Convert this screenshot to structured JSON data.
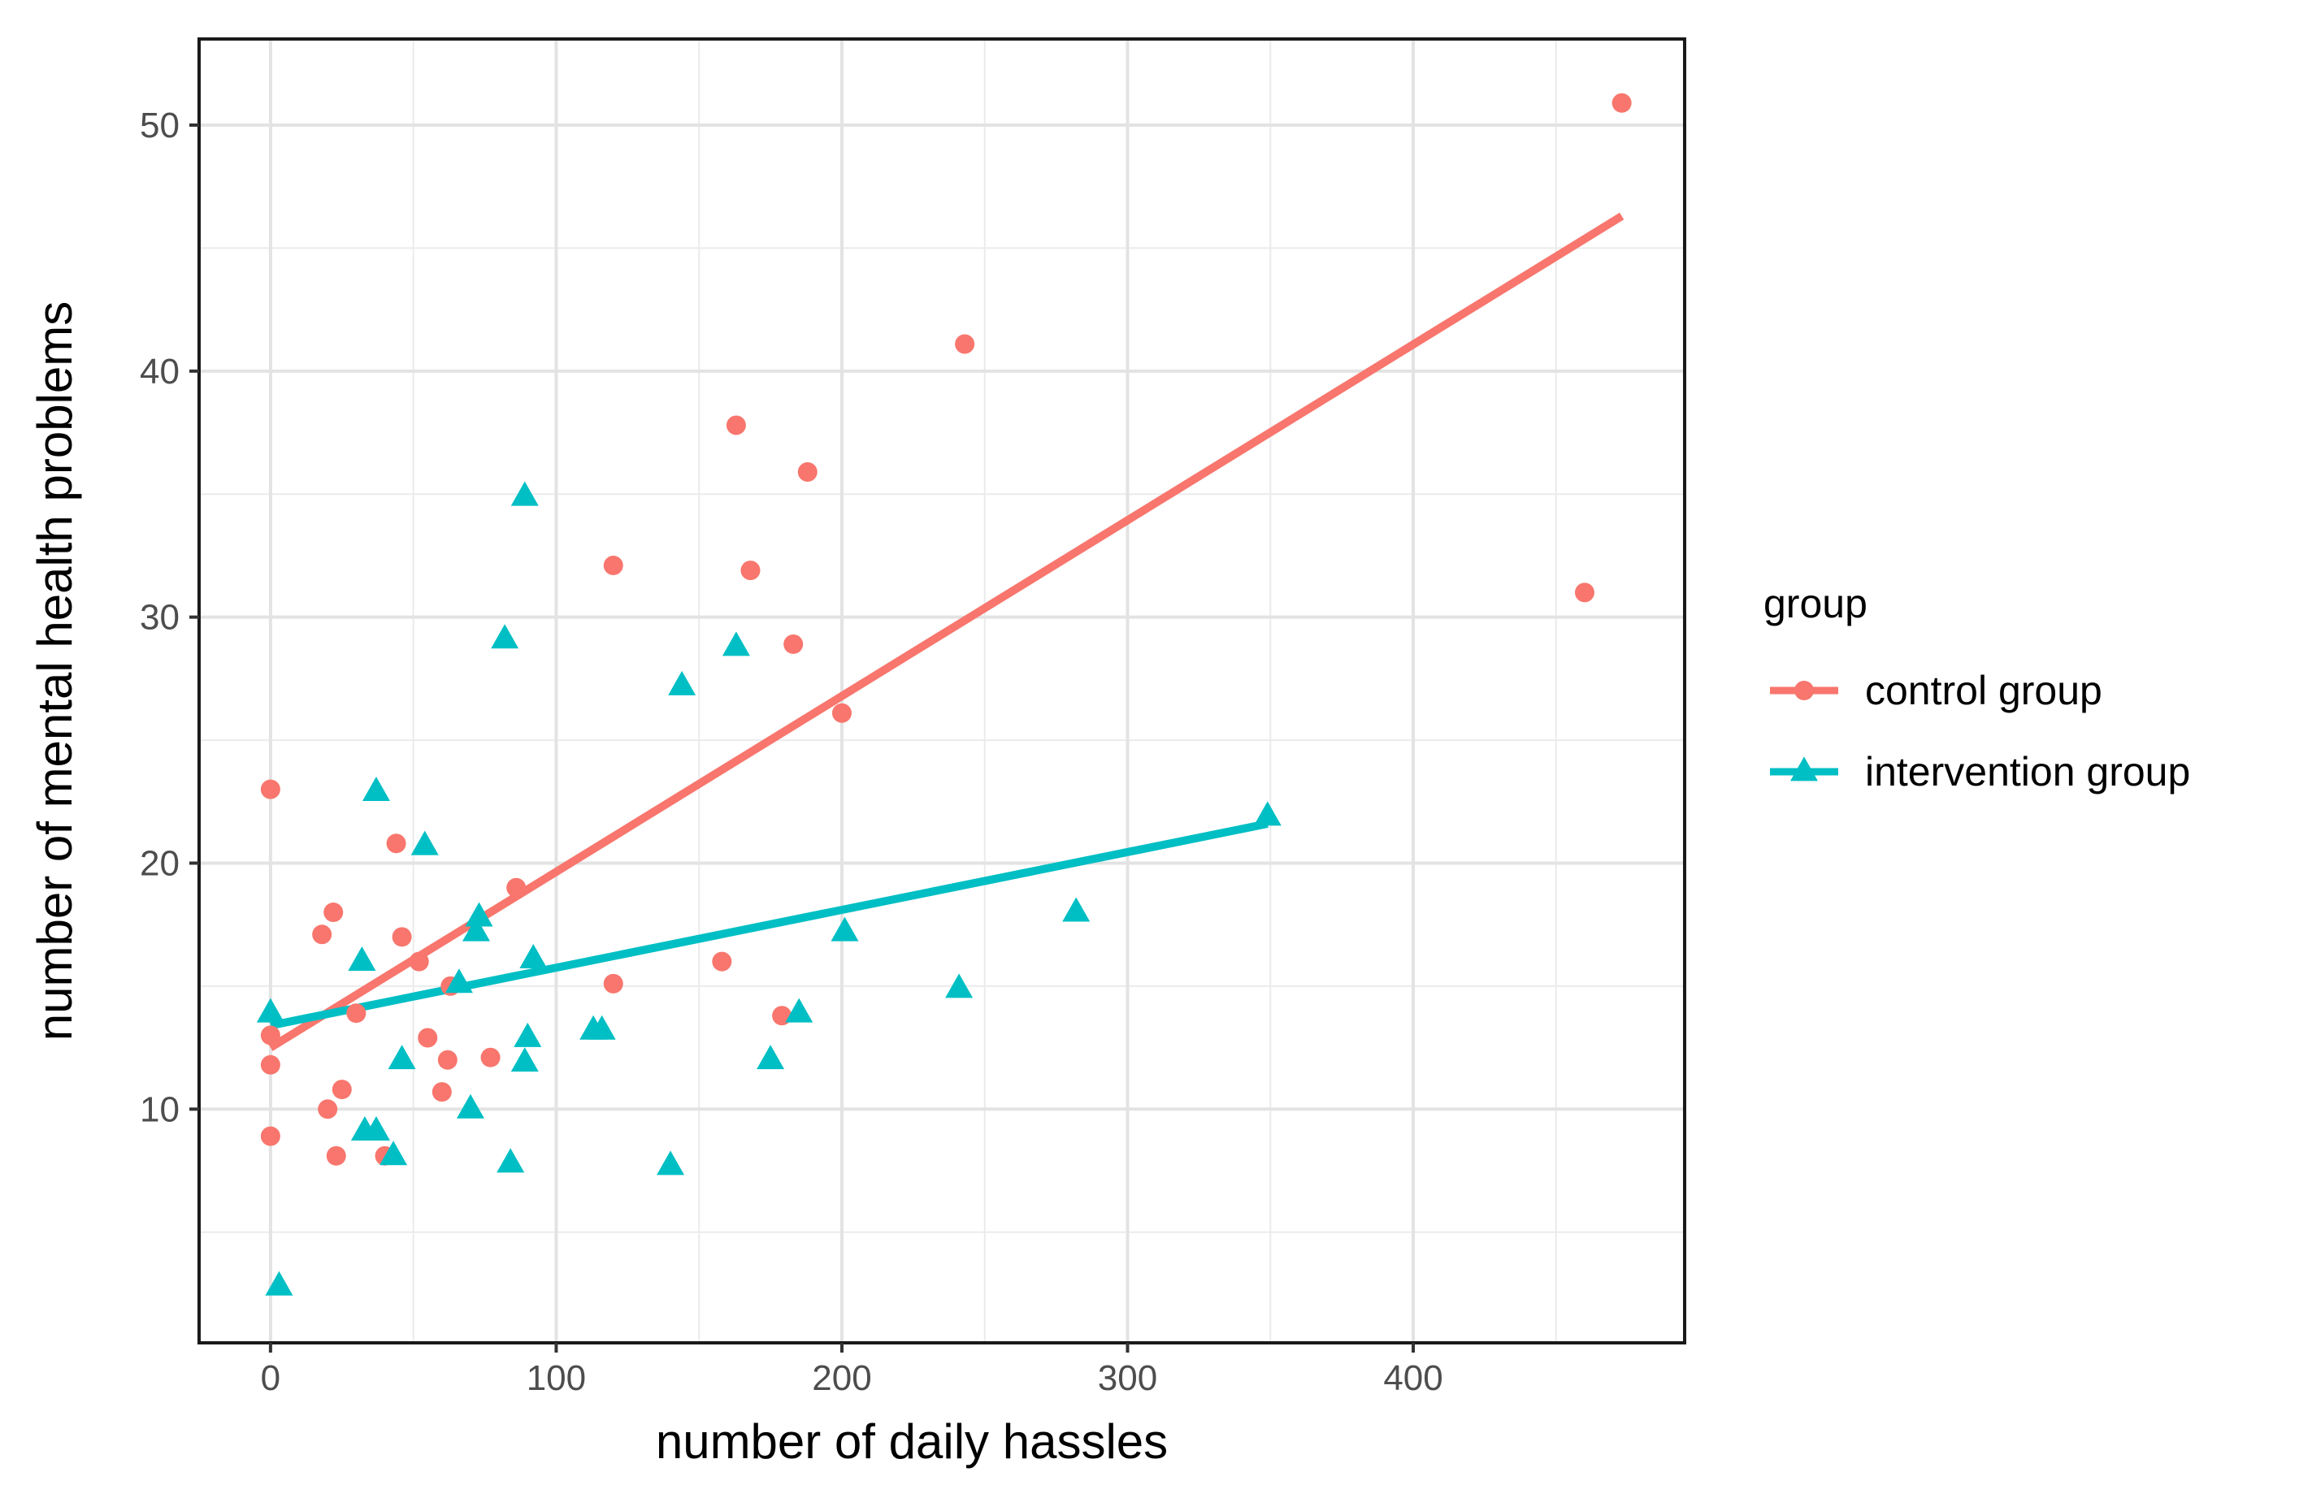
{
  "chart_data": {
    "type": "scatter",
    "title": "",
    "xlabel": "number of daily hassles",
    "ylabel": "number of mental health problems",
    "xlim": [
      -25,
      495
    ],
    "ylim": [
      0.5,
      53.5
    ],
    "x_ticks": [
      0,
      100,
      200,
      300,
      400
    ],
    "y_ticks": [
      10,
      20,
      30,
      40,
      50
    ],
    "grid": true,
    "legend": {
      "title": "group",
      "position": "right"
    },
    "series": [
      {
        "name": "control group",
        "color": "#F8766D",
        "marker": "circle",
        "points": [
          [
            0,
            23
          ],
          [
            0,
            13
          ],
          [
            0,
            11.8
          ],
          [
            0,
            8.9
          ],
          [
            18,
            17.1
          ],
          [
            22,
            18
          ],
          [
            20,
            10
          ],
          [
            23,
            8.1
          ],
          [
            25,
            10.8
          ],
          [
            30,
            13.9
          ],
          [
            44,
            20.8
          ],
          [
            46,
            17
          ],
          [
            40,
            8.1
          ],
          [
            52,
            16
          ],
          [
            55,
            12.9
          ],
          [
            62,
            12
          ],
          [
            60,
            10.7
          ],
          [
            63,
            15
          ],
          [
            77,
            12.1
          ],
          [
            86,
            19
          ],
          [
            120,
            32.1
          ],
          [
            120,
            15.1
          ],
          [
            158,
            16
          ],
          [
            163,
            37.8
          ],
          [
            168,
            31.9
          ],
          [
            179,
            13.8
          ],
          [
            183,
            28.9
          ],
          [
            188,
            35.9
          ],
          [
            200,
            26.1
          ],
          [
            243,
            41.1
          ],
          [
            460,
            31
          ],
          [
            473,
            50.9
          ]
        ],
        "fit": {
          "x_start": 0,
          "x_end": 473,
          "y_start": 12.5,
          "y_end": 46.3
        }
      },
      {
        "name": "intervention group",
        "color": "#00BFC4",
        "marker": "triangle",
        "points": [
          [
            0,
            13.9
          ],
          [
            3,
            2.8
          ],
          [
            32,
            16
          ],
          [
            33,
            9.1
          ],
          [
            37,
            9.1
          ],
          [
            37,
            22.9
          ],
          [
            43,
            8.1
          ],
          [
            46,
            12
          ],
          [
            54,
            20.7
          ],
          [
            66,
            15.1
          ],
          [
            70,
            10
          ],
          [
            72,
            17.2
          ],
          [
            73,
            17.8
          ],
          [
            82,
            29.1
          ],
          [
            84,
            7.8
          ],
          [
            89,
            34.9
          ],
          [
            89,
            11.9
          ],
          [
            90,
            12.9
          ],
          [
            92,
            16.1
          ],
          [
            113,
            13.2
          ],
          [
            116,
            13.2
          ],
          [
            140,
            7.7
          ],
          [
            144,
            27.2
          ],
          [
            163,
            28.8
          ],
          [
            175,
            12
          ],
          [
            185,
            13.9
          ],
          [
            201,
            17.2
          ],
          [
            241,
            14.9
          ],
          [
            282,
            18
          ],
          [
            349,
            21.9
          ]
        ],
        "fit": {
          "x_start": 0,
          "x_end": 349,
          "y_start": 13.4,
          "y_end": 21.6
        }
      }
    ]
  }
}
